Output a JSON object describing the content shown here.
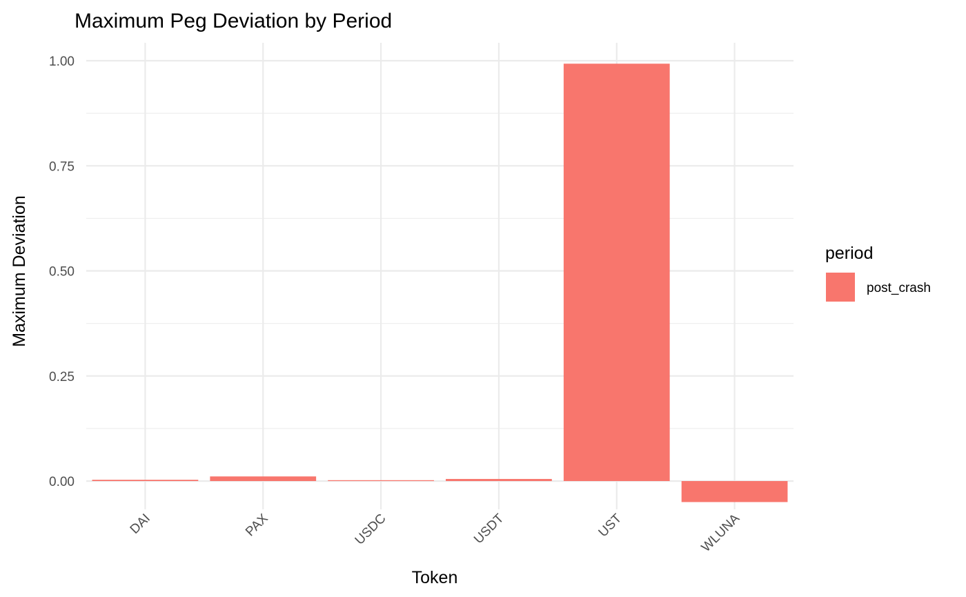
{
  "chart_data": {
    "type": "bar",
    "title": "Maximum Peg Deviation by Period",
    "xlabel": "Token",
    "ylabel": "Maximum Deviation",
    "categories": [
      "DAI",
      "PAX",
      "USDC",
      "USDT",
      "UST",
      "WLUNA"
    ],
    "series": [
      {
        "name": "post_crash",
        "values": [
          0.003,
          0.011,
          0.002,
          0.005,
          0.993,
          -0.05
        ],
        "color": "#F8766D"
      }
    ],
    "ylim": [
      -0.05,
      1.0
    ],
    "yticks": [
      0,
      0.25,
      0.5,
      0.75,
      1.0
    ],
    "ytick_labels": [
      "0.00",
      "0.25",
      "0.50",
      "0.75",
      "1.00"
    ],
    "legend": {
      "title": "period",
      "placement": "right"
    },
    "grid": true
  }
}
